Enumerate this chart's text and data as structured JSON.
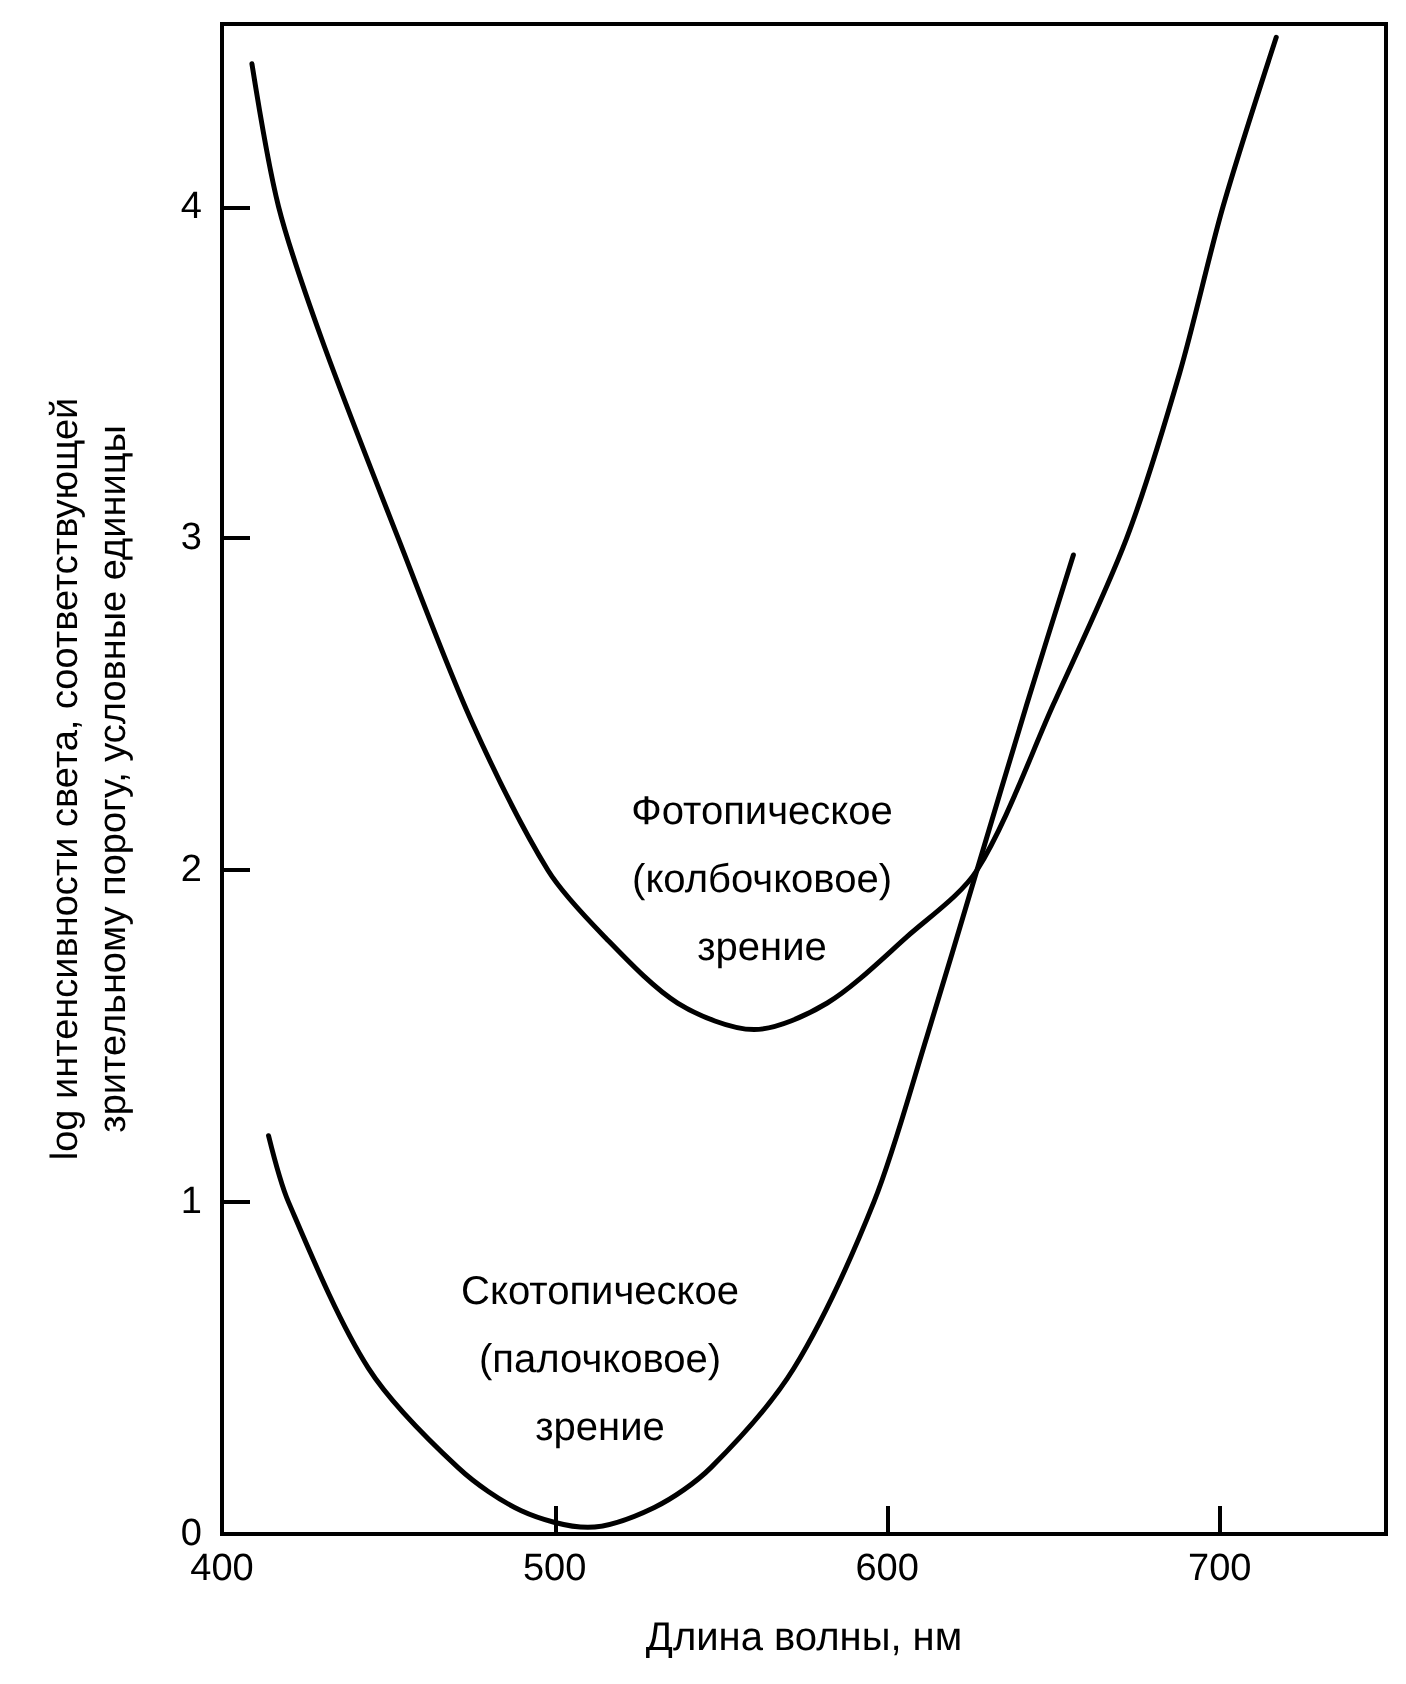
{
  "chart_data": {
    "type": "line",
    "xlabel": "Длина волны, нм",
    "ylabel": "log интенсивности света, соответствующей\nзрительному порогу, условные единицы",
    "series": [
      {
        "color": "#000000",
        "x": [
          409,
          417,
          430,
          453,
          475,
          498,
          515,
          537,
          560,
          582,
          606,
          627,
          650,
          672,
          688,
          701,
          717
        ],
        "values": [
          4.43,
          4.0,
          3.6,
          3.0,
          2.45,
          2.0,
          1.8,
          1.6,
          1.52,
          1.6,
          1.8,
          2.0,
          2.5,
          3.0,
          3.5,
          4.0,
          4.51
        ]
      },
      {
        "color": "#000000",
        "x": [
          414,
          420,
          444,
          471,
          490,
          510,
          530,
          547,
          572,
          596,
          612,
          627,
          642,
          656
        ],
        "values": [
          1.2,
          1.0,
          0.5,
          0.2,
          0.07,
          0.02,
          0.08,
          0.2,
          0.5,
          1.0,
          1.5,
          2.0,
          2.5,
          2.95
        ]
      }
    ],
    "annotations": [
      "Фотопическое\n(колбочковое)\nзрение",
      "Скотопическое\n(палочковое)\nзрение"
    ],
    "xlim": [
      400,
      750
    ],
    "xticks": [
      400,
      500,
      600,
      700
    ],
    "ylim": [
      0,
      4.55
    ],
    "yticks": [
      0,
      1,
      2,
      3,
      4
    ],
    "grid": false,
    "marker": "none",
    "line_style": "solid"
  }
}
